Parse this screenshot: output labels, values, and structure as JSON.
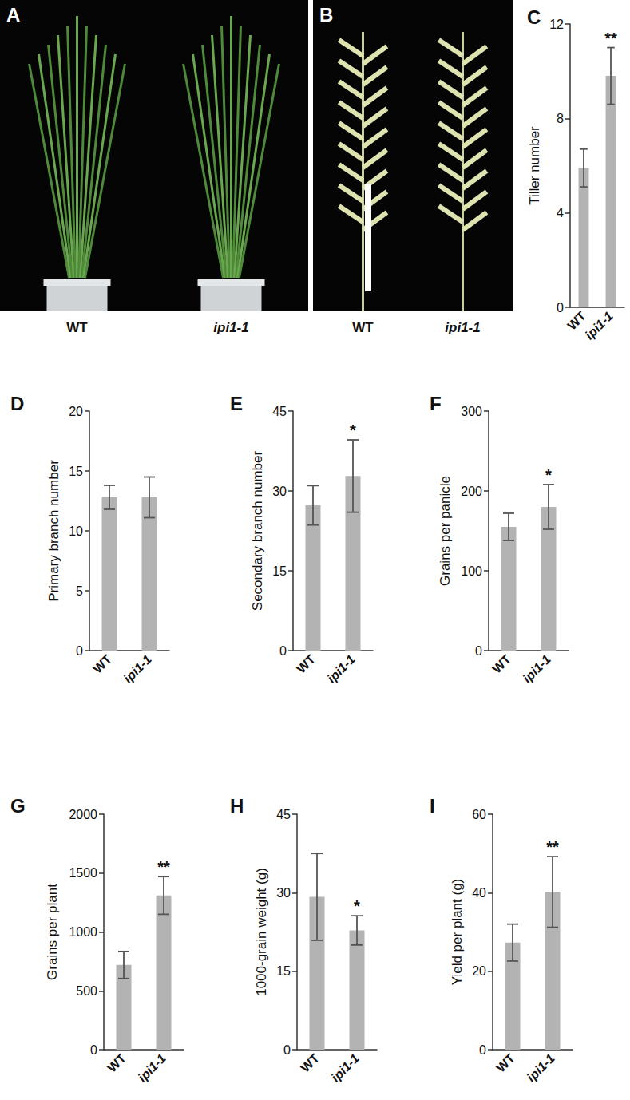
{
  "panels": [
    {
      "title": "A",
      "labels": [
        "WT",
        "ipi1-1"
      ]
    },
    {
      "title": "B",
      "labels": [
        "WT",
        "ipi1-1"
      ]
    }
  ],
  "chart_data": [
    {
      "type": "bar",
      "title": "C",
      "y_label": "Tiller number",
      "categories": [
        "WT",
        "ipi1-1"
      ],
      "values": [
        5.9,
        9.8
      ],
      "errors": [
        0.8,
        1.2
      ],
      "color": "#b3b3b3",
      "ylim": [
        0,
        12
      ],
      "yticks": [
        0,
        4,
        8,
        12
      ],
      "grid": false,
      "annotations": [
        {
          "category": "ipi1-1",
          "text": "**"
        }
      ]
    },
    {
      "type": "bar",
      "title": "D",
      "y_label": "Primary branch number",
      "categories": [
        "WT",
        "ipi1-1"
      ],
      "values": [
        12.8,
        12.8
      ],
      "errors": [
        1.0,
        1.7
      ],
      "color": "#b3b3b3",
      "ylim": [
        0,
        20
      ],
      "yticks": [
        0,
        5,
        10,
        15,
        20
      ],
      "grid": false
    },
    {
      "type": "bar",
      "title": "E",
      "y_label": "Secondary branch number",
      "categories": [
        "WT",
        "ipi1-1"
      ],
      "values": [
        27.3,
        32.8
      ],
      "errors": [
        3.7,
        6.8
      ],
      "color": "#b3b3b3",
      "ylim": [
        0,
        45
      ],
      "yticks": [
        0,
        15,
        30,
        45
      ],
      "grid": false,
      "annotations": [
        {
          "category": "ipi1-1",
          "text": "*"
        }
      ]
    },
    {
      "type": "bar",
      "title": "F",
      "y_label": "Grains per panicle",
      "categories": [
        "WT",
        "ipi1-1"
      ],
      "values": [
        155,
        180
      ],
      "errors": [
        17,
        28
      ],
      "color": "#b3b3b3",
      "ylim": [
        0,
        300
      ],
      "yticks": [
        0,
        100,
        200,
        300
      ],
      "grid": false,
      "annotations": [
        {
          "category": "ipi1-1",
          "text": "*"
        }
      ]
    },
    {
      "type": "bar",
      "title": "G",
      "y_label": "Grains per plant",
      "categories": [
        "WT",
        "ipi1-1"
      ],
      "values": [
        720,
        1310
      ],
      "errors": [
        115,
        160
      ],
      "color": "#b3b3b3",
      "ylim": [
        0,
        2000
      ],
      "yticks": [
        0,
        500,
        1000,
        1500,
        2000
      ],
      "grid": false,
      "annotations": [
        {
          "category": "ipi1-1",
          "text": "**"
        }
      ]
    },
    {
      "type": "bar",
      "title": "H",
      "y_label": "1000-grain weight (g)",
      "categories": [
        "WT",
        "ipi1-1"
      ],
      "values": [
        29.2,
        22.8
      ],
      "errors": [
        8.3,
        2.8
      ],
      "color": "#b3b3b3",
      "ylim": [
        0,
        45
      ],
      "yticks": [
        0,
        15,
        30,
        45
      ],
      "grid": false,
      "annotations": [
        {
          "category": "ipi1-1",
          "text": "*"
        }
      ]
    },
    {
      "type": "bar",
      "title": "I",
      "y_label": "Yield per plant (g)",
      "categories": [
        "WT",
        "ipi1-1"
      ],
      "values": [
        27.3,
        40.2
      ],
      "errors": [
        4.7,
        9.0
      ],
      "color": "#b3b3b3",
      "ylim": [
        0,
        60
      ],
      "yticks": [
        0,
        20,
        40,
        60
      ],
      "grid": false,
      "annotations": [
        {
          "category": "ipi1-1",
          "text": "**"
        }
      ]
    }
  ]
}
